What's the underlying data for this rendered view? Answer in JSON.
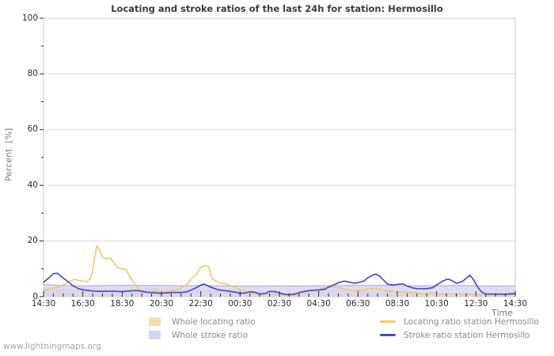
{
  "watermark": "www.lightningmaps.org",
  "chart": {
    "title": "Locating and stroke ratios of the last 24h for station: Hermosillo",
    "xlabel": "Time",
    "ylabel": "Percent  [%]"
  },
  "colors": {
    "background": "#ffffff",
    "grid": "#dcdcdc",
    "border": "#c8c8c8",
    "tick": "#2a2a2a",
    "title_text": "#3c3c3c",
    "axis_text": "#2a2a2a",
    "muted_text": "#8a8a8a",
    "watermark_text": "#a6a6a6"
  },
  "chart_data": {
    "type": "line",
    "title": "Locating and stroke ratios of the last 24h for station: Hermosillo",
    "xlabel": "Time",
    "ylabel": "Percent  [%]",
    "ylim": [
      0,
      100
    ],
    "x_domain": [
      0,
      24
    ],
    "x_major_step": 2,
    "x_minor_step": 0.5,
    "y_gridlines": [
      20,
      40,
      60,
      80
    ],
    "grid": "horizontal-only",
    "legend_position": "bottom-center",
    "x_ticks": [
      {
        "t": 0,
        "label": "14:30"
      },
      {
        "t": 2,
        "label": "16:30"
      },
      {
        "t": 4,
        "label": "18:30"
      },
      {
        "t": 6,
        "label": "20:30"
      },
      {
        "t": 8,
        "label": "22:30"
      },
      {
        "t": 10,
        "label": "00:30"
      },
      {
        "t": 12,
        "label": "02:30"
      },
      {
        "t": 14,
        "label": "04:30"
      },
      {
        "t": 16,
        "label": "06:30"
      },
      {
        "t": 18,
        "label": "08:30"
      },
      {
        "t": 20,
        "label": "10:30"
      },
      {
        "t": 22,
        "label": "12:30"
      },
      {
        "t": 24,
        "label": "14:30"
      }
    ],
    "y_ticks": [
      {
        "v": 0,
        "label": "0"
      },
      {
        "v": 20,
        "label": "20"
      },
      {
        "v": 40,
        "label": "40"
      },
      {
        "v": 60,
        "label": "60"
      },
      {
        "v": 80,
        "label": "80"
      },
      {
        "v": 100,
        "label": "100"
      }
    ],
    "series": [
      {
        "name": "Whole locating ratio",
        "kind": "area",
        "fill": "#f5dcb4",
        "fill_opacity": 0.95,
        "edge": "#e7c892",
        "points": [
          [
            0,
            2.3
          ],
          [
            1,
            2.4
          ],
          [
            2,
            2.4
          ],
          [
            3,
            2.5
          ],
          [
            4,
            2.5
          ],
          [
            4.5,
            2.6
          ],
          [
            5,
            2.8
          ],
          [
            5.5,
            2.9
          ],
          [
            6,
            2.9
          ],
          [
            6.5,
            2.7
          ],
          [
            7,
            2.5
          ],
          [
            7.5,
            2.4
          ],
          [
            8,
            2.4
          ],
          [
            8.5,
            2.3
          ],
          [
            9,
            2.2
          ],
          [
            9.5,
            2.1
          ],
          [
            10,
            2.0
          ],
          [
            10.5,
            1.8
          ],
          [
            11,
            1.6
          ],
          [
            11.5,
            1.4
          ],
          [
            12,
            1.3
          ],
          [
            12.5,
            1.2
          ],
          [
            13,
            1.2
          ],
          [
            13.5,
            1.5
          ],
          [
            14,
            1.8
          ],
          [
            14.5,
            2.0
          ],
          [
            15,
            2.1
          ],
          [
            15.5,
            2.0
          ],
          [
            16,
            2.0
          ],
          [
            16.5,
            2.1
          ],
          [
            17,
            2.0
          ],
          [
            17.5,
            1.9
          ],
          [
            18,
            1.7
          ],
          [
            18.5,
            1.5
          ],
          [
            19,
            1.3
          ],
          [
            19.5,
            1.1
          ],
          [
            20,
            1.0
          ],
          [
            20.5,
            0.9
          ],
          [
            21,
            0.9
          ],
          [
            21.5,
            0.8
          ],
          [
            22,
            0.8
          ],
          [
            22.5,
            0.8
          ],
          [
            23,
            0.7
          ],
          [
            23.5,
            0.7
          ],
          [
            24,
            0.7
          ]
        ]
      },
      {
        "name": "Whole stroke ratio",
        "kind": "area",
        "fill": "#d4d4f4",
        "fill_opacity": 0.8,
        "edge": "#a8a8e0",
        "points": [
          [
            0,
            4.4
          ],
          [
            0.5,
            4.2
          ],
          [
            1,
            4.0
          ],
          [
            2,
            3.9
          ],
          [
            3,
            4.0
          ],
          [
            4,
            4.1
          ],
          [
            5,
            4.1
          ],
          [
            6,
            4.0
          ],
          [
            7,
            3.9
          ],
          [
            8,
            4.0
          ],
          [
            9,
            3.9
          ],
          [
            10,
            3.8
          ],
          [
            11,
            3.8
          ],
          [
            12,
            3.9
          ],
          [
            13,
            3.8
          ],
          [
            14,
            3.9
          ],
          [
            15,
            4.0
          ],
          [
            16,
            4.0
          ],
          [
            17,
            4.1
          ],
          [
            18,
            4.0
          ],
          [
            19,
            3.9
          ],
          [
            20,
            3.9
          ],
          [
            21,
            4.0
          ],
          [
            22,
            3.9
          ],
          [
            23,
            3.8
          ],
          [
            24,
            3.9
          ]
        ]
      },
      {
        "name": "Locating ratio station Hermosillo",
        "kind": "line",
        "color": "#f8c667",
        "points": [
          [
            0,
            2.2
          ],
          [
            0.3,
            2.7
          ],
          [
            0.5,
            3.0
          ],
          [
            0.8,
            3.5
          ],
          [
            1,
            4.2
          ],
          [
            1.2,
            5.0
          ],
          [
            1.4,
            5.8
          ],
          [
            1.6,
            6.2
          ],
          [
            1.8,
            5.8
          ],
          [
            2,
            5.6
          ],
          [
            2.2,
            5.3
          ],
          [
            2.4,
            6.8
          ],
          [
            2.5,
            9.5
          ],
          [
            2.6,
            14.0
          ],
          [
            2.7,
            18.2
          ],
          [
            2.8,
            17.5
          ],
          [
            3,
            14.2
          ],
          [
            3.2,
            13.6
          ],
          [
            3.4,
            13.8
          ],
          [
            3.6,
            12.0
          ],
          [
            3.8,
            10.3
          ],
          [
            4,
            10.0
          ],
          [
            4.2,
            9.8
          ],
          [
            4.4,
            7.0
          ],
          [
            4.6,
            5.0
          ],
          [
            4.8,
            3.0
          ],
          [
            5,
            2.2
          ],
          [
            5.3,
            1.4
          ],
          [
            5.5,
            1.6
          ],
          [
            5.7,
            2.4
          ],
          [
            5.9,
            1.8
          ],
          [
            6,
            1.4
          ],
          [
            6.3,
            1.7
          ],
          [
            6.5,
            2.0
          ],
          [
            6.8,
            2.6
          ],
          [
            7,
            3.2
          ],
          [
            7.3,
            4.4
          ],
          [
            7.5,
            6.2
          ],
          [
            7.8,
            8.2
          ],
          [
            8,
            10.5
          ],
          [
            8.2,
            11.2
          ],
          [
            8.4,
            10.8
          ],
          [
            8.5,
            8.0
          ],
          [
            8.6,
            6.3
          ],
          [
            8.8,
            5.6
          ],
          [
            9,
            4.8
          ],
          [
            9.3,
            4.6
          ],
          [
            9.5,
            4.0
          ],
          [
            9.8,
            3.2
          ],
          [
            10,
            2.6
          ],
          [
            10.3,
            2.0
          ],
          [
            10.5,
            1.4
          ],
          [
            10.8,
            1.1
          ],
          [
            11,
            0.9
          ],
          [
            11.5,
            0.7
          ],
          [
            12,
            0.6
          ],
          [
            12.5,
            0.5
          ],
          [
            12.8,
            0.6
          ],
          [
            13,
            1.0
          ],
          [
            13.3,
            1.6
          ],
          [
            13.5,
            2.2
          ],
          [
            13.8,
            2.4
          ],
          [
            14,
            2.6
          ],
          [
            14.3,
            3.2
          ],
          [
            14.5,
            3.4
          ],
          [
            14.8,
            3.3
          ],
          [
            15,
            3.3
          ],
          [
            15.3,
            2.8
          ],
          [
            15.5,
            2.4
          ],
          [
            15.8,
            2.3
          ],
          [
            16,
            2.3
          ],
          [
            16.3,
            2.5
          ],
          [
            16.5,
            3.0
          ],
          [
            16.8,
            2.9
          ],
          [
            17,
            2.8
          ],
          [
            17.5,
            2.1
          ],
          [
            18,
            1.8
          ],
          [
            18.5,
            1.5
          ],
          [
            19,
            1.2
          ],
          [
            19.5,
            1.1
          ],
          [
            20,
            1.0
          ],
          [
            20.5,
            1.0
          ],
          [
            21,
            0.9
          ],
          [
            21.5,
            0.9
          ],
          [
            22,
            0.8
          ],
          [
            22.5,
            0.7
          ],
          [
            23,
            0.7
          ],
          [
            23.5,
            0.6
          ],
          [
            24,
            0.8
          ]
        ]
      },
      {
        "name": "Stroke ratio station Hermosillo",
        "kind": "line",
        "color": "#4545c8",
        "points": [
          [
            0,
            5.2
          ],
          [
            0.3,
            6.9
          ],
          [
            0.5,
            8.3
          ],
          [
            0.7,
            8.4
          ],
          [
            1,
            6.7
          ],
          [
            1.3,
            5.1
          ],
          [
            1.5,
            3.9
          ],
          [
            1.8,
            2.8
          ],
          [
            2,
            2.5
          ],
          [
            2.5,
            2.0
          ],
          [
            3,
            1.9
          ],
          [
            3.5,
            2.0
          ],
          [
            4,
            1.8
          ],
          [
            4.5,
            2.1
          ],
          [
            4.8,
            2.2
          ],
          [
            5,
            1.9
          ],
          [
            5.3,
            1.6
          ],
          [
            5.5,
            1.5
          ],
          [
            6,
            1.2
          ],
          [
            6.5,
            1.5
          ],
          [
            7,
            1.5
          ],
          [
            7.3,
            1.7
          ],
          [
            7.5,
            2.4
          ],
          [
            7.8,
            3.3
          ],
          [
            8,
            4.2
          ],
          [
            8.2,
            4.5
          ],
          [
            8.5,
            3.4
          ],
          [
            8.8,
            2.7
          ],
          [
            9,
            2.3
          ],
          [
            9.3,
            2.1
          ],
          [
            9.5,
            1.9
          ],
          [
            9.8,
            1.6
          ],
          [
            10,
            1.1
          ],
          [
            10.3,
            1.4
          ],
          [
            10.5,
            1.8
          ],
          [
            10.8,
            1.5
          ],
          [
            11,
            0.9
          ],
          [
            11.3,
            1.2
          ],
          [
            11.5,
            1.9
          ],
          [
            11.8,
            1.8
          ],
          [
            12,
            1.3
          ],
          [
            12.3,
            0.8
          ],
          [
            12.5,
            0.7
          ],
          [
            12.8,
            0.9
          ],
          [
            13,
            1.5
          ],
          [
            13.3,
            1.9
          ],
          [
            13.5,
            2.2
          ],
          [
            14,
            2.4
          ],
          [
            14.3,
            2.6
          ],
          [
            14.5,
            3.4
          ],
          [
            14.8,
            4.3
          ],
          [
            15,
            5.0
          ],
          [
            15.3,
            5.6
          ],
          [
            15.5,
            5.3
          ],
          [
            15.8,
            4.9
          ],
          [
            16,
            5.0
          ],
          [
            16.3,
            5.6
          ],
          [
            16.5,
            6.8
          ],
          [
            16.8,
            7.9
          ],
          [
            16.9,
            8.1
          ],
          [
            17.1,
            7.4
          ],
          [
            17.3,
            6.0
          ],
          [
            17.5,
            4.5
          ],
          [
            17.8,
            4.2
          ],
          [
            18,
            4.4
          ],
          [
            18.3,
            4.6
          ],
          [
            18.5,
            3.8
          ],
          [
            18.8,
            3.1
          ],
          [
            19,
            2.9
          ],
          [
            19.3,
            2.8
          ],
          [
            19.5,
            2.9
          ],
          [
            19.8,
            3.2
          ],
          [
            20,
            4.2
          ],
          [
            20.3,
            5.5
          ],
          [
            20.5,
            6.2
          ],
          [
            20.6,
            6.3
          ],
          [
            20.8,
            5.7
          ],
          [
            21,
            4.8
          ],
          [
            21.3,
            5.4
          ],
          [
            21.5,
            6.6
          ],
          [
            21.7,
            7.7
          ],
          [
            21.9,
            5.8
          ],
          [
            22.1,
            3.3
          ],
          [
            22.3,
            1.6
          ],
          [
            22.5,
            1.0
          ],
          [
            23,
            0.9
          ],
          [
            23.5,
            0.9
          ],
          [
            24,
            1.1
          ]
        ]
      }
    ]
  }
}
